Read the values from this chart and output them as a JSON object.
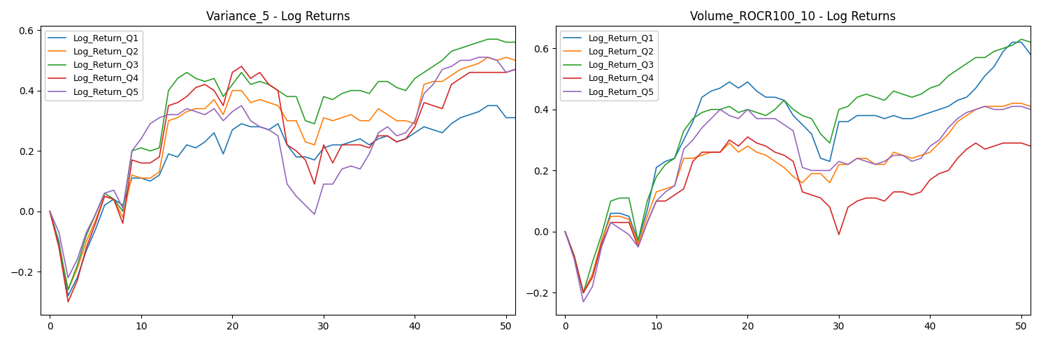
{
  "title1": "Variance_5 - Log Returns",
  "title2": "Volume_ROCR100_10 - Log Returns",
  "colors": {
    "Q1": "#1f77b4",
    "Q2": "#ff7f0e",
    "Q3": "#2ca02c",
    "Q4": "#d62728",
    "Q5": "#9467bd"
  },
  "legend_labels": [
    "Log_Return_Q1",
    "Log_Return_Q2",
    "Log_Return_Q3",
    "Log_Return_Q4",
    "Log_Return_Q5"
  ],
  "figsize": [
    14.89,
    4.9
  ],
  "dpi": 100,
  "chart1": {
    "Q1": [
      0.0,
      -0.1,
      -0.28,
      -0.22,
      -0.13,
      -0.06,
      0.02,
      0.04,
      0.02,
      0.11,
      0.11,
      0.1,
      0.12,
      0.19,
      0.18,
      0.22,
      0.21,
      0.23,
      0.26,
      0.19,
      0.27,
      0.29,
      0.28,
      0.28,
      0.27,
      0.29,
      0.22,
      0.18,
      0.18,
      0.17,
      0.21,
      0.22,
      0.22,
      0.23,
      0.24,
      0.22,
      0.24,
      0.25,
      0.23,
      0.24,
      0.26,
      0.28,
      0.27,
      0.26,
      0.29,
      0.31,
      0.32,
      0.33,
      0.35,
      0.35,
      0.31,
      0.31
    ],
    "Q2": [
      0.0,
      -0.11,
      -0.26,
      -0.19,
      -0.1,
      -0.03,
      0.05,
      0.04,
      -0.02,
      0.12,
      0.11,
      0.11,
      0.13,
      0.3,
      0.31,
      0.33,
      0.34,
      0.34,
      0.37,
      0.32,
      0.4,
      0.4,
      0.36,
      0.37,
      0.36,
      0.35,
      0.3,
      0.3,
      0.23,
      0.22,
      0.31,
      0.3,
      0.31,
      0.32,
      0.3,
      0.3,
      0.34,
      0.32,
      0.3,
      0.3,
      0.29,
      0.42,
      0.43,
      0.43,
      0.45,
      0.47,
      0.48,
      0.49,
      0.51,
      0.5,
      0.51,
      0.5
    ],
    "Q3": [
      0.0,
      -0.11,
      -0.26,
      -0.18,
      -0.08,
      -0.01,
      0.06,
      0.04,
      -0.0,
      0.2,
      0.21,
      0.2,
      0.21,
      0.4,
      0.44,
      0.46,
      0.44,
      0.43,
      0.44,
      0.38,
      0.42,
      0.46,
      0.42,
      0.43,
      0.42,
      0.4,
      0.38,
      0.38,
      0.3,
      0.29,
      0.38,
      0.37,
      0.39,
      0.4,
      0.4,
      0.39,
      0.43,
      0.43,
      0.41,
      0.4,
      0.44,
      0.46,
      0.48,
      0.5,
      0.53,
      0.54,
      0.55,
      0.56,
      0.57,
      0.57,
      0.56,
      0.56
    ],
    "Q4": [
      0.0,
      -0.12,
      -0.3,
      -0.23,
      -0.12,
      -0.04,
      0.05,
      0.04,
      -0.04,
      0.17,
      0.16,
      0.16,
      0.18,
      0.35,
      0.36,
      0.38,
      0.41,
      0.42,
      0.4,
      0.35,
      0.46,
      0.48,
      0.44,
      0.46,
      0.42,
      0.4,
      0.22,
      0.2,
      0.17,
      0.09,
      0.22,
      0.16,
      0.22,
      0.22,
      0.22,
      0.21,
      0.25,
      0.25,
      0.23,
      0.24,
      0.28,
      0.36,
      0.35,
      0.34,
      0.42,
      0.44,
      0.46,
      0.46,
      0.46,
      0.46,
      0.46,
      0.47
    ],
    "Q5": [
      0.0,
      -0.07,
      -0.22,
      -0.16,
      -0.07,
      -0.01,
      0.06,
      0.07,
      0.01,
      0.2,
      0.24,
      0.29,
      0.31,
      0.32,
      0.32,
      0.34,
      0.33,
      0.32,
      0.34,
      0.3,
      0.33,
      0.35,
      0.3,
      0.28,
      0.27,
      0.25,
      0.09,
      0.05,
      0.02,
      -0.01,
      0.09,
      0.09,
      0.14,
      0.15,
      0.14,
      0.19,
      0.26,
      0.28,
      0.25,
      0.26,
      0.3,
      0.39,
      0.42,
      0.47,
      0.48,
      0.5,
      0.5,
      0.51,
      0.51,
      0.5,
      0.46,
      0.47
    ]
  },
  "chart2": {
    "Q1": [
      0.0,
      -0.08,
      -0.2,
      -0.14,
      -0.03,
      0.06,
      0.06,
      0.05,
      -0.03,
      0.07,
      0.21,
      0.23,
      0.24,
      0.3,
      0.36,
      0.44,
      0.46,
      0.47,
      0.49,
      0.47,
      0.49,
      0.46,
      0.44,
      0.44,
      0.43,
      0.38,
      0.35,
      0.32,
      0.24,
      0.23,
      0.36,
      0.36,
      0.38,
      0.38,
      0.38,
      0.37,
      0.38,
      0.37,
      0.37,
      0.38,
      0.39,
      0.4,
      0.41,
      0.43,
      0.44,
      0.47,
      0.51,
      0.54,
      0.59,
      0.62,
      0.62,
      0.58
    ],
    "Q2": [
      0.0,
      -0.08,
      -0.2,
      -0.14,
      -0.03,
      0.05,
      0.05,
      0.04,
      -0.04,
      0.05,
      0.13,
      0.14,
      0.15,
      0.24,
      0.24,
      0.25,
      0.26,
      0.26,
      0.29,
      0.26,
      0.28,
      0.26,
      0.25,
      0.23,
      0.21,
      0.18,
      0.16,
      0.19,
      0.19,
      0.16,
      0.22,
      0.22,
      0.24,
      0.24,
      0.22,
      0.22,
      0.26,
      0.25,
      0.24,
      0.25,
      0.26,
      0.29,
      0.32,
      0.36,
      0.38,
      0.4,
      0.41,
      0.41,
      0.41,
      0.42,
      0.42,
      0.41
    ],
    "Q3": [
      0.0,
      -0.08,
      -0.2,
      -0.1,
      -0.01,
      0.1,
      0.11,
      0.11,
      -0.03,
      0.1,
      0.18,
      0.22,
      0.24,
      0.33,
      0.37,
      0.39,
      0.4,
      0.4,
      0.41,
      0.39,
      0.4,
      0.39,
      0.38,
      0.4,
      0.43,
      0.4,
      0.38,
      0.37,
      0.32,
      0.29,
      0.4,
      0.41,
      0.44,
      0.45,
      0.44,
      0.43,
      0.46,
      0.45,
      0.44,
      0.45,
      0.47,
      0.48,
      0.51,
      0.53,
      0.55,
      0.57,
      0.57,
      0.59,
      0.6,
      0.61,
      0.63,
      0.62
    ],
    "Q4": [
      0.0,
      -0.08,
      -0.2,
      -0.15,
      -0.04,
      0.03,
      0.03,
      0.03,
      -0.05,
      0.03,
      0.1,
      0.1,
      0.12,
      0.14,
      0.23,
      0.26,
      0.26,
      0.26,
      0.3,
      0.28,
      0.31,
      0.29,
      0.28,
      0.26,
      0.25,
      0.23,
      0.13,
      0.12,
      0.11,
      0.08,
      -0.01,
      0.08,
      0.1,
      0.11,
      0.11,
      0.1,
      0.13,
      0.13,
      0.12,
      0.13,
      0.17,
      0.19,
      0.2,
      0.24,
      0.27,
      0.29,
      0.27,
      0.28,
      0.29,
      0.29,
      0.29,
      0.28
    ],
    "Q5": [
      0.0,
      -0.09,
      -0.23,
      -0.18,
      -0.05,
      0.03,
      0.01,
      -0.01,
      -0.05,
      0.03,
      0.1,
      0.13,
      0.15,
      0.27,
      0.3,
      0.34,
      0.37,
      0.4,
      0.38,
      0.37,
      0.4,
      0.37,
      0.37,
      0.37,
      0.35,
      0.33,
      0.21,
      0.2,
      0.2,
      0.2,
      0.23,
      0.22,
      0.24,
      0.23,
      0.22,
      0.23,
      0.25,
      0.25,
      0.23,
      0.24,
      0.28,
      0.3,
      0.34,
      0.37,
      0.39,
      0.4,
      0.41,
      0.4,
      0.4,
      0.41,
      0.41,
      0.4
    ]
  }
}
